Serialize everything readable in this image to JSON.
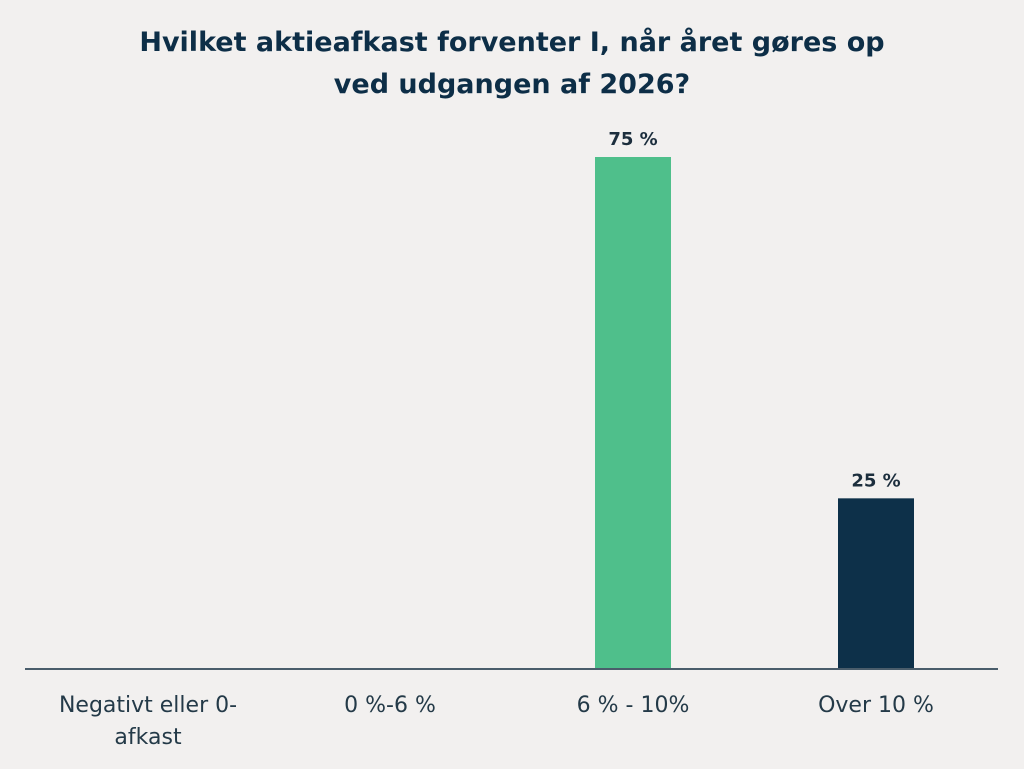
{
  "chart_data": {
    "type": "bar",
    "title_lines": [
      "Hvilket aktieafkast forventer I, når året gøres op",
      "ved udgangen af 2026?"
    ],
    "categories": [
      [
        "Negativt eller 0-",
        "afkast"
      ],
      [
        "0 %-6 %"
      ],
      [
        "6 % - 10%"
      ],
      [
        "Over 10 %"
      ]
    ],
    "values": [
      0,
      0,
      75,
      25
    ],
    "data_labels": [
      "",
      "",
      "75 %",
      "25 %"
    ],
    "colors": [
      "#4fbf8b",
      "#4fbf8b",
      "#4fbf8b",
      "#0d3049"
    ],
    "ylim": [
      0,
      75
    ],
    "xlabel": "",
    "ylabel": "",
    "grid": false,
    "legend": "none"
  }
}
